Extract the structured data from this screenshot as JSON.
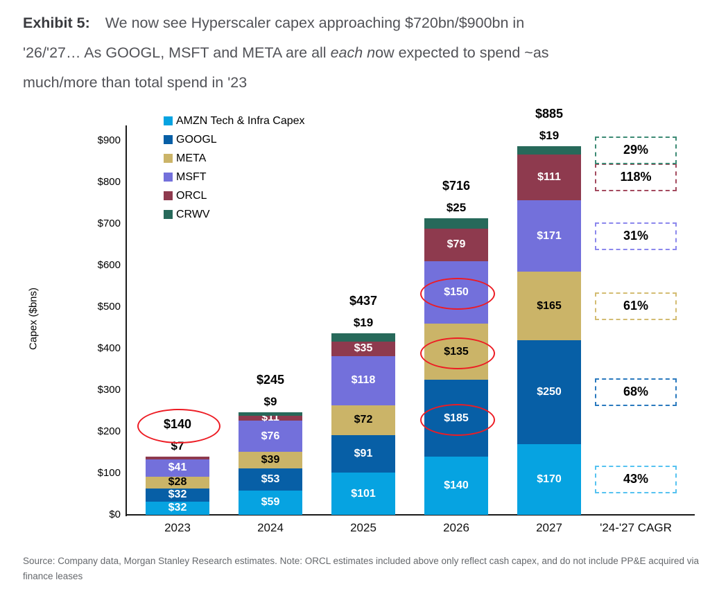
{
  "title": {
    "lines": [
      {
        "bold": "Exhibit 5:",
        "text": "We now see Hyperscaler capex approaching $720bn/$900bn in"
      },
      {
        "pre": "'26/'27… As GOOGL, MSFT and META are all ",
        "italic": "each n",
        "post": "ow expected to spend ~as"
      },
      {
        "text": "much/more than total spend in '23"
      }
    ]
  },
  "source_note": "Source: Company data, Morgan Stanley Research estimates. Note: ORCL estimates included above only reflect cash capex, and do not include PP&E acquired via finance leases",
  "chart_data": {
    "type": "bar",
    "stacked": true,
    "ylabel": "Capex ($bns)",
    "xlabel": "",
    "ylim": [
      0,
      900
    ],
    "ytick_step": 100,
    "value_prefix": "$",
    "grid": false,
    "legend_position": "top-left-inside",
    "categories": [
      "2023",
      "2024",
      "2025",
      "2026",
      "2027"
    ],
    "cagr_column_label": "'24-'27 CAGR",
    "series": [
      {
        "name": "AMZN Tech & Infra Capex",
        "color": "#06a3e1",
        "label_color": "#ffffff",
        "values": [
          32,
          59,
          101,
          140,
          170
        ],
        "cagr": "43%",
        "cagr_border": "#55c2f0",
        "outside_label_categories": []
      },
      {
        "name": "GOOGL",
        "color": "#075fa6",
        "label_color": "#ffffff",
        "values": [
          32,
          53,
          91,
          185,
          250
        ],
        "cagr": "68%",
        "cagr_border": "#2979be",
        "outside_label_categories": []
      },
      {
        "name": "META",
        "color": "#cbb468",
        "label_color": "#000000",
        "values": [
          28,
          39,
          72,
          135,
          165
        ],
        "cagr": "61%",
        "cagr_border": "#d3bc72",
        "outside_label_categories": []
      },
      {
        "name": "MSFT",
        "color": "#7370db",
        "label_color": "#ffffff",
        "values": [
          41,
          76,
          118,
          150,
          171
        ],
        "cagr": "31%",
        "cagr_border": "#8b87ec",
        "outside_label_categories": []
      },
      {
        "name": "ORCL",
        "color": "#8e3a4e",
        "label_color": "#ffffff",
        "values": [
          7,
          11,
          35,
          79,
          111
        ],
        "cagr": "118%",
        "cagr_border": "#a34a5e",
        "outside_label_categories": [
          "2023"
        ]
      },
      {
        "name": "CRWV",
        "color": "#27695a",
        "label_color": "#000000",
        "values": [
          0,
          9,
          19,
          25,
          19
        ],
        "cagr": "29%",
        "cagr_border": "#3c8a74",
        "outside_label_categories": [
          "2024",
          "2025",
          "2026",
          "2027"
        ]
      }
    ],
    "totals": [
      140,
      245,
      437,
      716,
      885
    ],
    "annotations": {
      "circle_color": "#ed1c24",
      "circled_totals": [
        "2023"
      ],
      "circled_segments": [
        {
          "category": "2026",
          "series": "GOOGL"
        },
        {
          "category": "2026",
          "series": "META"
        },
        {
          "category": "2026",
          "series": "MSFT"
        }
      ]
    }
  }
}
